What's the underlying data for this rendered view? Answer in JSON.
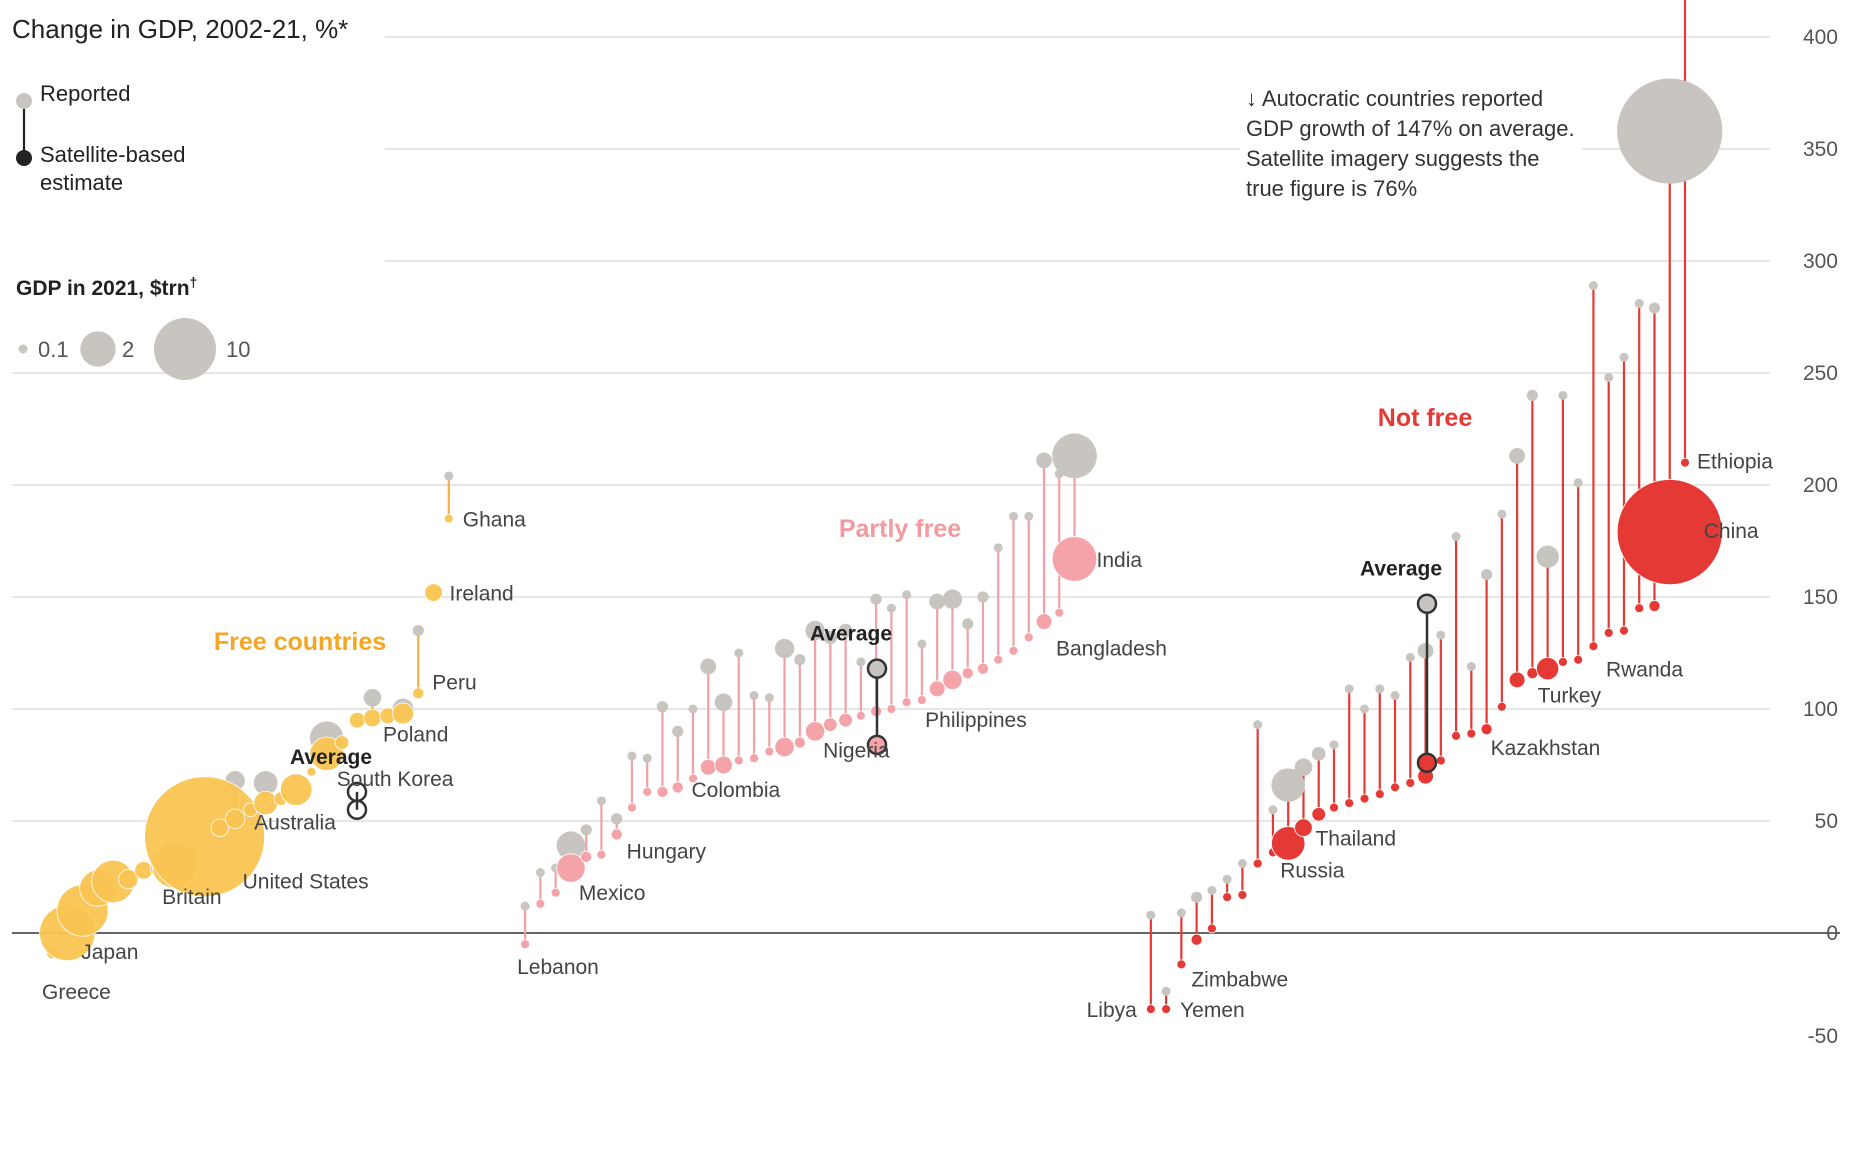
{
  "title": "Change in GDP, 2002-21, %*",
  "legend": {
    "reported": "Reported",
    "satellite": "Satellite-based estimate",
    "size_title": "GDP in 2021, $trn",
    "size_title_mark": "†",
    "sizes": [
      "0.1",
      "2",
      "10"
    ]
  },
  "annotation": "↓ Autocratic countries reported GDP growth of 147% on average. Satellite imagery suggests the true figure is 76%",
  "colors": {
    "free": "#f5b041",
    "free_light": "#f9c451",
    "partly": "#f4a3a8",
    "partly_line": "#f1a1a5",
    "notfree": "#e53935",
    "notfree_line": "#e53935",
    "reported": "#c8c5c1",
    "average": "#333333",
    "grid": "#d8d8d8",
    "zero": "#666666"
  },
  "chart_data": {
    "type": "scatter",
    "ylim": [
      -50,
      450
    ],
    "yticks": [
      -50,
      0,
      50,
      100,
      150,
      200,
      250,
      300,
      350,
      400,
      450
    ],
    "groups": [
      {
        "name": "Free countries",
        "color": "free",
        "average": {
          "label": "Average",
          "reported": 63,
          "satellite": 55
        }
      },
      {
        "name": "Partly free",
        "color": "partly",
        "average": {
          "label": "Average",
          "reported": 118,
          "satellite": 84
        }
      },
      {
        "name": "Not free",
        "color": "notfree",
        "average": {
          "label": "Average",
          "reported": 147,
          "satellite": 76
        }
      }
    ],
    "countries": [
      {
        "name": "Greece",
        "group": 0,
        "reported": -9,
        "satellite": -9,
        "gdp": 0.2,
        "label": true
      },
      {
        "name": "Japan",
        "group": 0,
        "reported": 0,
        "satellite": 0,
        "gdp": 4.9,
        "label": true
      },
      {
        "name": "",
        "group": 0,
        "reported": 10,
        "satellite": 10,
        "gdp": 4.2
      },
      {
        "name": "",
        "group": 0,
        "reported": 20,
        "satellite": 20,
        "gdp": 2.1
      },
      {
        "name": "",
        "group": 0,
        "reported": 23,
        "satellite": 23,
        "gdp": 2.9
      },
      {
        "name": "",
        "group": 0,
        "reported": 24,
        "satellite": 24,
        "gdp": 0.6
      },
      {
        "name": "",
        "group": 0,
        "reported": 28,
        "satellite": 28,
        "gdp": 0.5
      },
      {
        "name": "",
        "group": 0,
        "reported": 29,
        "satellite": 29,
        "gdp": 0.5
      },
      {
        "name": "Britain",
        "group": 0,
        "reported": 30,
        "satellite": 30,
        "gdp": 3.1,
        "label": true
      },
      {
        "name": "",
        "group": 0,
        "reported": 35,
        "satellite": 35,
        "gdp": 0.4
      },
      {
        "name": "United States",
        "group": 0,
        "reported": 43,
        "satellite": 43,
        "gdp": 23.0,
        "label": true
      },
      {
        "name": "",
        "group": 0,
        "reported": 47,
        "satellite": 47,
        "gdp": 0.5
      },
      {
        "name": "",
        "group": 0,
        "reported": 68,
        "satellite": 51,
        "gdp": 0.6
      },
      {
        "name": "",
        "group": 0,
        "reported": 55,
        "satellite": 55,
        "gdp": 0.3
      },
      {
        "name": "",
        "group": 0,
        "reported": 67,
        "satellite": 58,
        "gdp": 0.9
      },
      {
        "name": "",
        "group": 0,
        "reported": 60,
        "satellite": 60,
        "gdp": 0.3
      },
      {
        "name": "Australia",
        "group": 0,
        "reported": 64,
        "satellite": 64,
        "gdp": 1.6,
        "label": true
      },
      {
        "name": "",
        "group": 0,
        "reported": 72,
        "satellite": 72,
        "gdp": 0.1
      },
      {
        "name": "South Korea",
        "group": 0,
        "reported": 87,
        "satellite": 80,
        "gdp": 1.8,
        "label": true
      },
      {
        "name": "",
        "group": 0,
        "reported": 85,
        "satellite": 85,
        "gdp": 0.3
      },
      {
        "name": "",
        "group": 0,
        "reported": 95,
        "satellite": 95,
        "gdp": 0.4
      },
      {
        "name": "",
        "group": 0,
        "reported": 105,
        "satellite": 96,
        "gdp": 0.5
      },
      {
        "name": "",
        "group": 0,
        "reported": 97,
        "satellite": 97,
        "gdp": 0.4
      },
      {
        "name": "Poland",
        "group": 0,
        "reported": 100,
        "satellite": 98,
        "gdp": 0.7,
        "label": true
      },
      {
        "name": "Peru",
        "group": 0,
        "reported": 135,
        "satellite": 107,
        "gdp": 0.2,
        "label": true
      },
      {
        "name": "Ireland",
        "group": 0,
        "reported": 152,
        "satellite": 152,
        "gdp": 0.5,
        "label": true
      },
      {
        "name": "Ghana",
        "group": 0,
        "reported": 204,
        "satellite": 185,
        "gdp": 0.1,
        "label": true
      },
      {
        "name": "Lebanon",
        "group": 1,
        "reported": 12,
        "satellite": -5,
        "gdp": 0.1,
        "label": true
      },
      {
        "name": "",
        "group": 1,
        "reported": 27,
        "satellite": 13,
        "gdp": 0.1
      },
      {
        "name": "",
        "group": 1,
        "reported": 29,
        "satellite": 18,
        "gdp": 0.1
      },
      {
        "name": "Mexico",
        "group": 1,
        "reported": 39,
        "satellite": 29,
        "gdp": 1.3,
        "label": true
      },
      {
        "name": "",
        "group": 1,
        "reported": 46,
        "satellite": 34,
        "gdp": 0.2
      },
      {
        "name": "",
        "group": 1,
        "reported": 59,
        "satellite": 35,
        "gdp": 0.1
      },
      {
        "name": "Hungary",
        "group": 1,
        "reported": 51,
        "satellite": 44,
        "gdp": 0.2,
        "label": true
      },
      {
        "name": "",
        "group": 1,
        "reported": 79,
        "satellite": 56,
        "gdp": 0.1
      },
      {
        "name": "",
        "group": 1,
        "reported": 78,
        "satellite": 63,
        "gdp": 0.1
      },
      {
        "name": "",
        "group": 1,
        "reported": 101,
        "satellite": 63,
        "gdp": 0.2
      },
      {
        "name": "",
        "group": 1,
        "reported": 90,
        "satellite": 65,
        "gdp": 0.2
      },
      {
        "name": "",
        "group": 1,
        "reported": 100,
        "satellite": 69,
        "gdp": 0.1
      },
      {
        "name": "",
        "group": 1,
        "reported": 119,
        "satellite": 74,
        "gdp": 0.4
      },
      {
        "name": "Colombia",
        "group": 1,
        "reported": 103,
        "satellite": 75,
        "gdp": 0.5,
        "label": true
      },
      {
        "name": "",
        "group": 1,
        "reported": 125,
        "satellite": 77,
        "gdp": 0.1
      },
      {
        "name": "",
        "group": 1,
        "reported": 106,
        "satellite": 78,
        "gdp": 0.1
      },
      {
        "name": "",
        "group": 1,
        "reported": 105,
        "satellite": 81,
        "gdp": 0.1
      },
      {
        "name": "",
        "group": 1,
        "reported": 127,
        "satellite": 83,
        "gdp": 0.6
      },
      {
        "name": "",
        "group": 1,
        "reported": 122,
        "satellite": 85,
        "gdp": 0.2
      },
      {
        "name": "Nigeria",
        "group": 1,
        "reported": 135,
        "satellite": 90,
        "gdp": 0.6,
        "label": true
      },
      {
        "name": "",
        "group": 1,
        "reported": 132,
        "satellite": 93,
        "gdp": 0.3
      },
      {
        "name": "",
        "group": 1,
        "reported": 135,
        "satellite": 95,
        "gdp": 0.3
      },
      {
        "name": "",
        "group": 1,
        "reported": 121,
        "satellite": 97,
        "gdp": 0.1
      },
      {
        "name": "",
        "group": 1,
        "reported": 149,
        "satellite": 99,
        "gdp": 0.2
      },
      {
        "name": "",
        "group": 1,
        "reported": 145,
        "satellite": 100,
        "gdp": 0.1
      },
      {
        "name": "",
        "group": 1,
        "reported": 151,
        "satellite": 103,
        "gdp": 0.1
      },
      {
        "name": "",
        "group": 1,
        "reported": 129,
        "satellite": 104,
        "gdp": 0.1
      },
      {
        "name": "Philippines",
        "group": 1,
        "reported": 148,
        "satellite": 109,
        "gdp": 0.4,
        "label": true
      },
      {
        "name": "",
        "group": 1,
        "reported": 149,
        "satellite": 113,
        "gdp": 0.6
      },
      {
        "name": "",
        "group": 1,
        "reported": 138,
        "satellite": 116,
        "gdp": 0.2
      },
      {
        "name": "",
        "group": 1,
        "reported": 150,
        "satellite": 118,
        "gdp": 0.2
      },
      {
        "name": "",
        "group": 1,
        "reported": 172,
        "satellite": 122,
        "gdp": 0.1
      },
      {
        "name": "",
        "group": 1,
        "reported": 186,
        "satellite": 126,
        "gdp": 0.1
      },
      {
        "name": "",
        "group": 1,
        "reported": 186,
        "satellite": 132,
        "gdp": 0.1
      },
      {
        "name": "Bangladesh",
        "group": 1,
        "reported": 211,
        "satellite": 139,
        "gdp": 0.4,
        "label": true
      },
      {
        "name": "",
        "group": 1,
        "reported": 205,
        "satellite": 143,
        "gdp": 0.1
      },
      {
        "name": "India",
        "group": 1,
        "reported": 213,
        "satellite": 167,
        "gdp": 3.2,
        "label": true
      },
      {
        "name": "Libya",
        "group": 2,
        "reported": 8,
        "satellite": -34,
        "gdp": 0.1,
        "label": true
      },
      {
        "name": "Yemen",
        "group": 2,
        "reported": -26,
        "satellite": -34,
        "gdp": 0.1,
        "label": true
      },
      {
        "name": "Zimbabwe",
        "group": 2,
        "reported": 9,
        "satellite": -14,
        "gdp": 0.1,
        "label": true
      },
      {
        "name": "",
        "group": 2,
        "reported": 16,
        "satellite": -3,
        "gdp": 0.2
      },
      {
        "name": "",
        "group": 2,
        "reported": 19,
        "satellite": 2,
        "gdp": 0.1
      },
      {
        "name": "",
        "group": 2,
        "reported": 24,
        "satellite": 16,
        "gdp": 0.1
      },
      {
        "name": "",
        "group": 2,
        "reported": 31,
        "satellite": 17,
        "gdp": 0.1
      },
      {
        "name": "",
        "group": 2,
        "reported": 93,
        "satellite": 31,
        "gdp": 0.1
      },
      {
        "name": "",
        "group": 2,
        "reported": 55,
        "satellite": 36,
        "gdp": 0.1
      },
      {
        "name": "Russia",
        "group": 2,
        "reported": 66,
        "satellite": 40,
        "gdp": 1.8,
        "label": true
      },
      {
        "name": "Thailand",
        "group": 2,
        "reported": 74,
        "satellite": 47,
        "gdp": 0.5,
        "label": true
      },
      {
        "name": "",
        "group": 2,
        "reported": 80,
        "satellite": 53,
        "gdp": 0.3
      },
      {
        "name": "",
        "group": 2,
        "reported": 84,
        "satellite": 56,
        "gdp": 0.1
      },
      {
        "name": "",
        "group": 2,
        "reported": 109,
        "satellite": 58,
        "gdp": 0.1
      },
      {
        "name": "",
        "group": 2,
        "reported": 100,
        "satellite": 60,
        "gdp": 0.1
      },
      {
        "name": "",
        "group": 2,
        "reported": 109,
        "satellite": 62,
        "gdp": 0.1
      },
      {
        "name": "",
        "group": 2,
        "reported": 106,
        "satellite": 65,
        "gdp": 0.1
      },
      {
        "name": "",
        "group": 2,
        "reported": 123,
        "satellite": 67,
        "gdp": 0.1
      },
      {
        "name": "",
        "group": 2,
        "reported": 126,
        "satellite": 70,
        "gdp": 0.4
      },
      {
        "name": "",
        "group": 2,
        "reported": 133,
        "satellite": 77,
        "gdp": 0.1
      },
      {
        "name": "",
        "group": 2,
        "reported": 177,
        "satellite": 88,
        "gdp": 0.1
      },
      {
        "name": "",
        "group": 2,
        "reported": 119,
        "satellite": 89,
        "gdp": 0.1
      },
      {
        "name": "Kazakhstan",
        "group": 2,
        "reported": 160,
        "satellite": 91,
        "gdp": 0.2,
        "label": true
      },
      {
        "name": "",
        "group": 2,
        "reported": 187,
        "satellite": 101,
        "gdp": 0.1
      },
      {
        "name": "",
        "group": 2,
        "reported": 213,
        "satellite": 113,
        "gdp": 0.4
      },
      {
        "name": "",
        "group": 2,
        "reported": 240,
        "satellite": 116,
        "gdp": 0.2
      },
      {
        "name": "Turkey",
        "group": 2,
        "reported": 168,
        "satellite": 118,
        "gdp": 0.8,
        "label": true
      },
      {
        "name": "",
        "group": 2,
        "reported": 240,
        "satellite": 121,
        "gdp": 0.1
      },
      {
        "name": "",
        "group": 2,
        "reported": 201,
        "satellite": 122,
        "gdp": 0.1
      },
      {
        "name": "",
        "group": 2,
        "reported": 289,
        "satellite": 128,
        "gdp": 0.1
      },
      {
        "name": "",
        "group": 2,
        "reported": 248,
        "satellite": 134,
        "gdp": 0.1
      },
      {
        "name": "Rwanda",
        "group": 2,
        "reported": 257,
        "satellite": 135,
        "gdp": 0.1,
        "label": true
      },
      {
        "name": "",
        "group": 2,
        "reported": 281,
        "satellite": 145,
        "gdp": 0.1
      },
      {
        "name": "",
        "group": 2,
        "reported": 279,
        "satellite": 146,
        "gdp": 0.2
      },
      {
        "name": "China",
        "group": 2,
        "reported": 358,
        "satellite": 179,
        "gdp": 17.7,
        "label": true
      },
      {
        "name": "Ethiopia",
        "group": 2,
        "reported": 423,
        "satellite": 210,
        "gdp": 0.1,
        "label": true
      }
    ]
  }
}
